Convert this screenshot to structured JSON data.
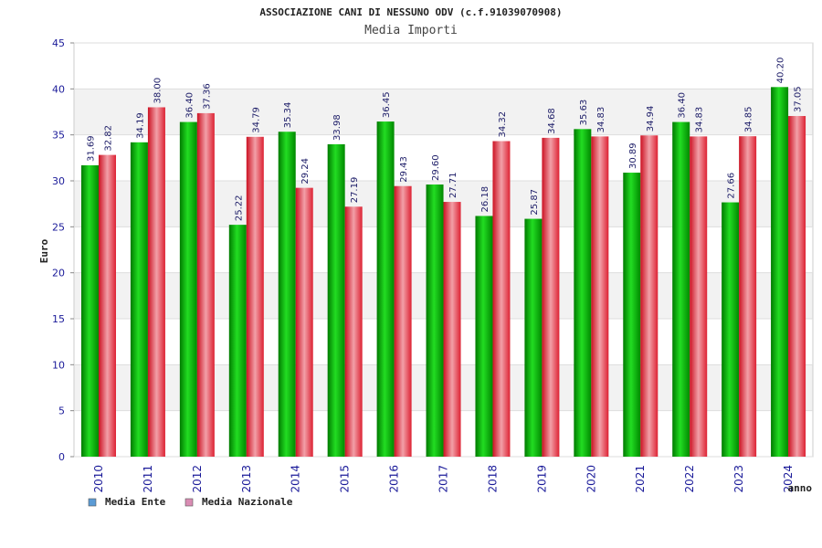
{
  "chart_data": {
    "type": "bar",
    "title": "ASSOCIAZIONE CANI DI NESSUNO ODV (c.f.91039070908)",
    "subtitle": "Media Importi",
    "xlabel": "anno",
    "ylabel": "Euro",
    "ylim": [
      0,
      45
    ],
    "yticks": [
      0,
      5,
      10,
      15,
      20,
      25,
      30,
      35,
      40,
      45
    ],
    "grid": true,
    "legend_position": "bottom-left",
    "categories": [
      "2010",
      "2011",
      "2012",
      "2013",
      "2014",
      "2015",
      "2016",
      "2017",
      "2018",
      "2019",
      "2020",
      "2021",
      "2022",
      "2023",
      "2024"
    ],
    "series": [
      {
        "name": "Media Ente",
        "color": "#00aa00",
        "legend_color": "#5b9bd5",
        "values": [
          31.69,
          34.19,
          36.4,
          25.22,
          35.34,
          33.98,
          36.45,
          29.6,
          26.18,
          25.87,
          35.63,
          30.89,
          36.4,
          27.66,
          40.2
        ],
        "labels": [
          "31.69",
          "34.19",
          "36.40",
          "25.22",
          "35.34",
          "33.98",
          "36.45",
          "29.60",
          "26.18",
          "25.87",
          "35.63",
          "30.89",
          "36.40",
          "27.66",
          "40.20"
        ]
      },
      {
        "name": "Media Nazionale",
        "color": "#dd2233",
        "legend_color": "#d98cb3",
        "values": [
          32.82,
          38.0,
          37.36,
          34.79,
          29.24,
          27.19,
          29.43,
          27.71,
          34.32,
          34.68,
          34.83,
          34.94,
          34.83,
          34.85,
          37.05
        ],
        "labels": [
          "32.82",
          "38.00",
          "37.36",
          "34.79",
          "29.24",
          "27.19",
          "29.43",
          "27.71",
          "34.32",
          "34.68",
          "34.83",
          "34.94",
          "34.83",
          "34.85",
          "37.05"
        ]
      }
    ]
  }
}
